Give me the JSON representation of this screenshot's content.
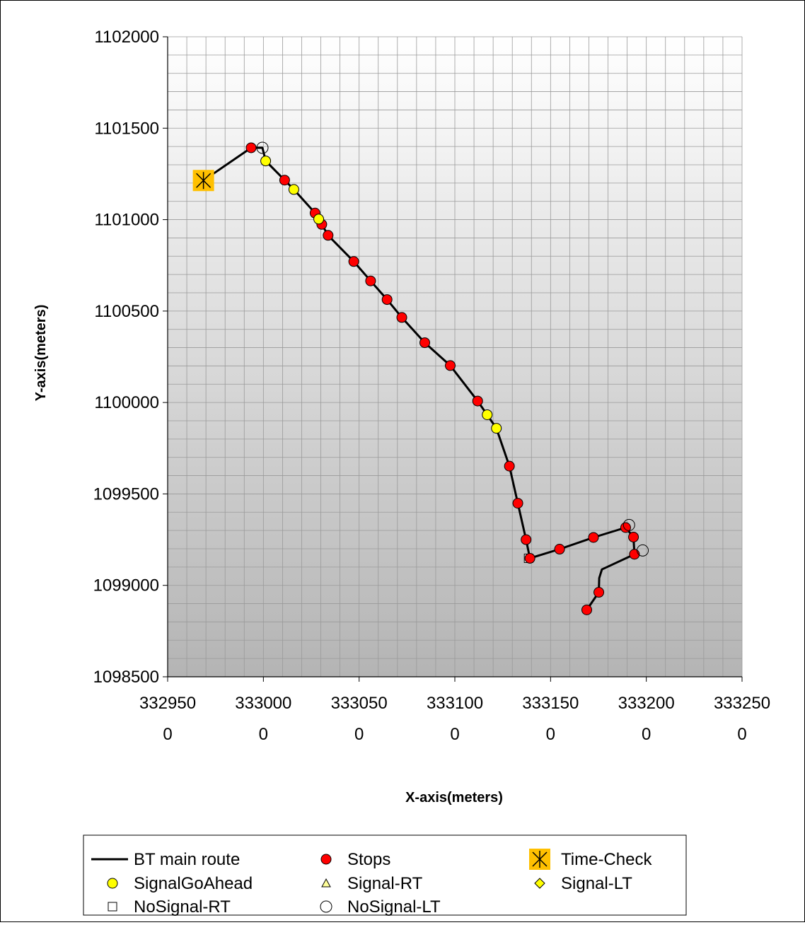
{
  "chart_data": {
    "type": "scatter",
    "xlabel": "X-axis(meters)",
    "ylabel": "Y-axis(meters)",
    "xlim": [
      3329500,
      3332500
    ],
    "ylim": [
      1098500,
      1102000
    ],
    "x_ticks": [
      {
        "value": 3329500,
        "line1": "332950",
        "line2": "0"
      },
      {
        "value": 3330000,
        "line1": "333000",
        "line2": "0"
      },
      {
        "value": 3330500,
        "line1": "333050",
        "line2": "0"
      },
      {
        "value": 3331000,
        "line1": "333100",
        "line2": "0"
      },
      {
        "value": 3331500,
        "line1": "333150",
        "line2": "0"
      },
      {
        "value": 3332000,
        "line1": "333200",
        "line2": "0"
      },
      {
        "value": 3332500,
        "line1": "333250",
        "line2": "0"
      }
    ],
    "y_ticks": [
      {
        "value": 1098500,
        "label": "1098500"
      },
      {
        "value": 1099000,
        "label": "1099000"
      },
      {
        "value": 1099500,
        "label": "1099500"
      },
      {
        "value": 1100000,
        "label": "1100000"
      },
      {
        "value": 1100500,
        "label": "1100500"
      },
      {
        "value": 1101000,
        "label": "1101000"
      },
      {
        "value": 1101500,
        "label": "1101500"
      },
      {
        "value": 1102000,
        "label": "1102000"
      }
    ],
    "grid": true,
    "legend_position": "bottom",
    "series": [
      {
        "name": "BT main route",
        "kind": "line",
        "color": "#000000",
        "points": [
          [
            3329687,
            1101214
          ],
          [
            3329936,
            1101393
          ],
          [
            3329995,
            1101393
          ],
          [
            3330012,
            1101321
          ],
          [
            3330111,
            1101216
          ],
          [
            3330159,
            1101165
          ],
          [
            3330270,
            1101036
          ],
          [
            3330289,
            1101003
          ],
          [
            3330305,
            1100974
          ],
          [
            3330338,
            1100914
          ],
          [
            3330472,
            1100771
          ],
          [
            3330560,
            1100665
          ],
          [
            3330646,
            1100563
          ],
          [
            3330723,
            1100465
          ],
          [
            3330843,
            1100327
          ],
          [
            3330976,
            1100202
          ],
          [
            3331119,
            1100008
          ],
          [
            3331169,
            1099933
          ],
          [
            3331217,
            1099859
          ],
          [
            3331285,
            1099652
          ],
          [
            3331329,
            1099449
          ],
          [
            3331372,
            1099250
          ],
          [
            3331392,
            1099148
          ],
          [
            3331547,
            1099198
          ],
          [
            3331724,
            1099262
          ],
          [
            3331892,
            1099316
          ],
          [
            3331933,
            1099264
          ],
          [
            3331938,
            1099170
          ],
          [
            3331768,
            1099087
          ],
          [
            3331754,
            1099040
          ],
          [
            3331752,
            1098962
          ],
          [
            3331689,
            1098866
          ]
        ]
      },
      {
        "name": "Stops",
        "kind": "marker",
        "shape": "circle",
        "fill": "#ff0000",
        "points": [
          [
            3329936,
            1101393
          ],
          [
            3330111,
            1101216
          ],
          [
            3330270,
            1101036
          ],
          [
            3330305,
            1100974
          ],
          [
            3330338,
            1100914
          ],
          [
            3330472,
            1100771
          ],
          [
            3330560,
            1100665
          ],
          [
            3330646,
            1100563
          ],
          [
            3330723,
            1100465
          ],
          [
            3330843,
            1100327
          ],
          [
            3330976,
            1100202
          ],
          [
            3331119,
            1100008
          ],
          [
            3331285,
            1099652
          ],
          [
            3331329,
            1099449
          ],
          [
            3331372,
            1099250
          ],
          [
            3331392,
            1099148
          ],
          [
            3331547,
            1099198
          ],
          [
            3331724,
            1099262
          ],
          [
            3331892,
            1099316
          ],
          [
            3331933,
            1099264
          ],
          [
            3331938,
            1099170
          ],
          [
            3331752,
            1098962
          ],
          [
            3331689,
            1098866
          ]
        ]
      },
      {
        "name": "Time-Check",
        "kind": "marker",
        "shape": "star-square",
        "fill": "#ffc000",
        "points": [
          [
            3329687,
            1101214
          ]
        ]
      },
      {
        "name": "SignalGoAhead",
        "kind": "marker",
        "shape": "circle",
        "fill": "#ffff00",
        "points": [
          [
            3330012,
            1101321
          ],
          [
            3330159,
            1101165
          ],
          [
            3330289,
            1101003
          ],
          [
            3331169,
            1099933
          ],
          [
            3331217,
            1099859
          ]
        ]
      },
      {
        "name": "Signal-RT",
        "kind": "marker",
        "shape": "triangle",
        "fill": "#ffff99",
        "points": []
      },
      {
        "name": "Signal-LT",
        "kind": "marker",
        "shape": "diamond",
        "fill": "#ffff00",
        "points": []
      },
      {
        "name": "NoSignal-RT",
        "kind": "marker",
        "shape": "square",
        "fill": "#ffffff",
        "points": [
          [
            3331385,
            1099148
          ]
        ]
      },
      {
        "name": "NoSignal-LT",
        "kind": "marker",
        "shape": "open-circle",
        "fill": "#ffffff",
        "points": [
          [
            3329995,
            1101393
          ],
          [
            3331910,
            1099330
          ],
          [
            3331981,
            1099191
          ]
        ]
      }
    ],
    "legend_order": [
      "BT main route",
      "Stops",
      "Time-Check",
      "SignalGoAhead",
      "Signal-RT",
      "Signal-LT",
      "NoSignal-RT",
      "NoSignal-LT"
    ]
  }
}
